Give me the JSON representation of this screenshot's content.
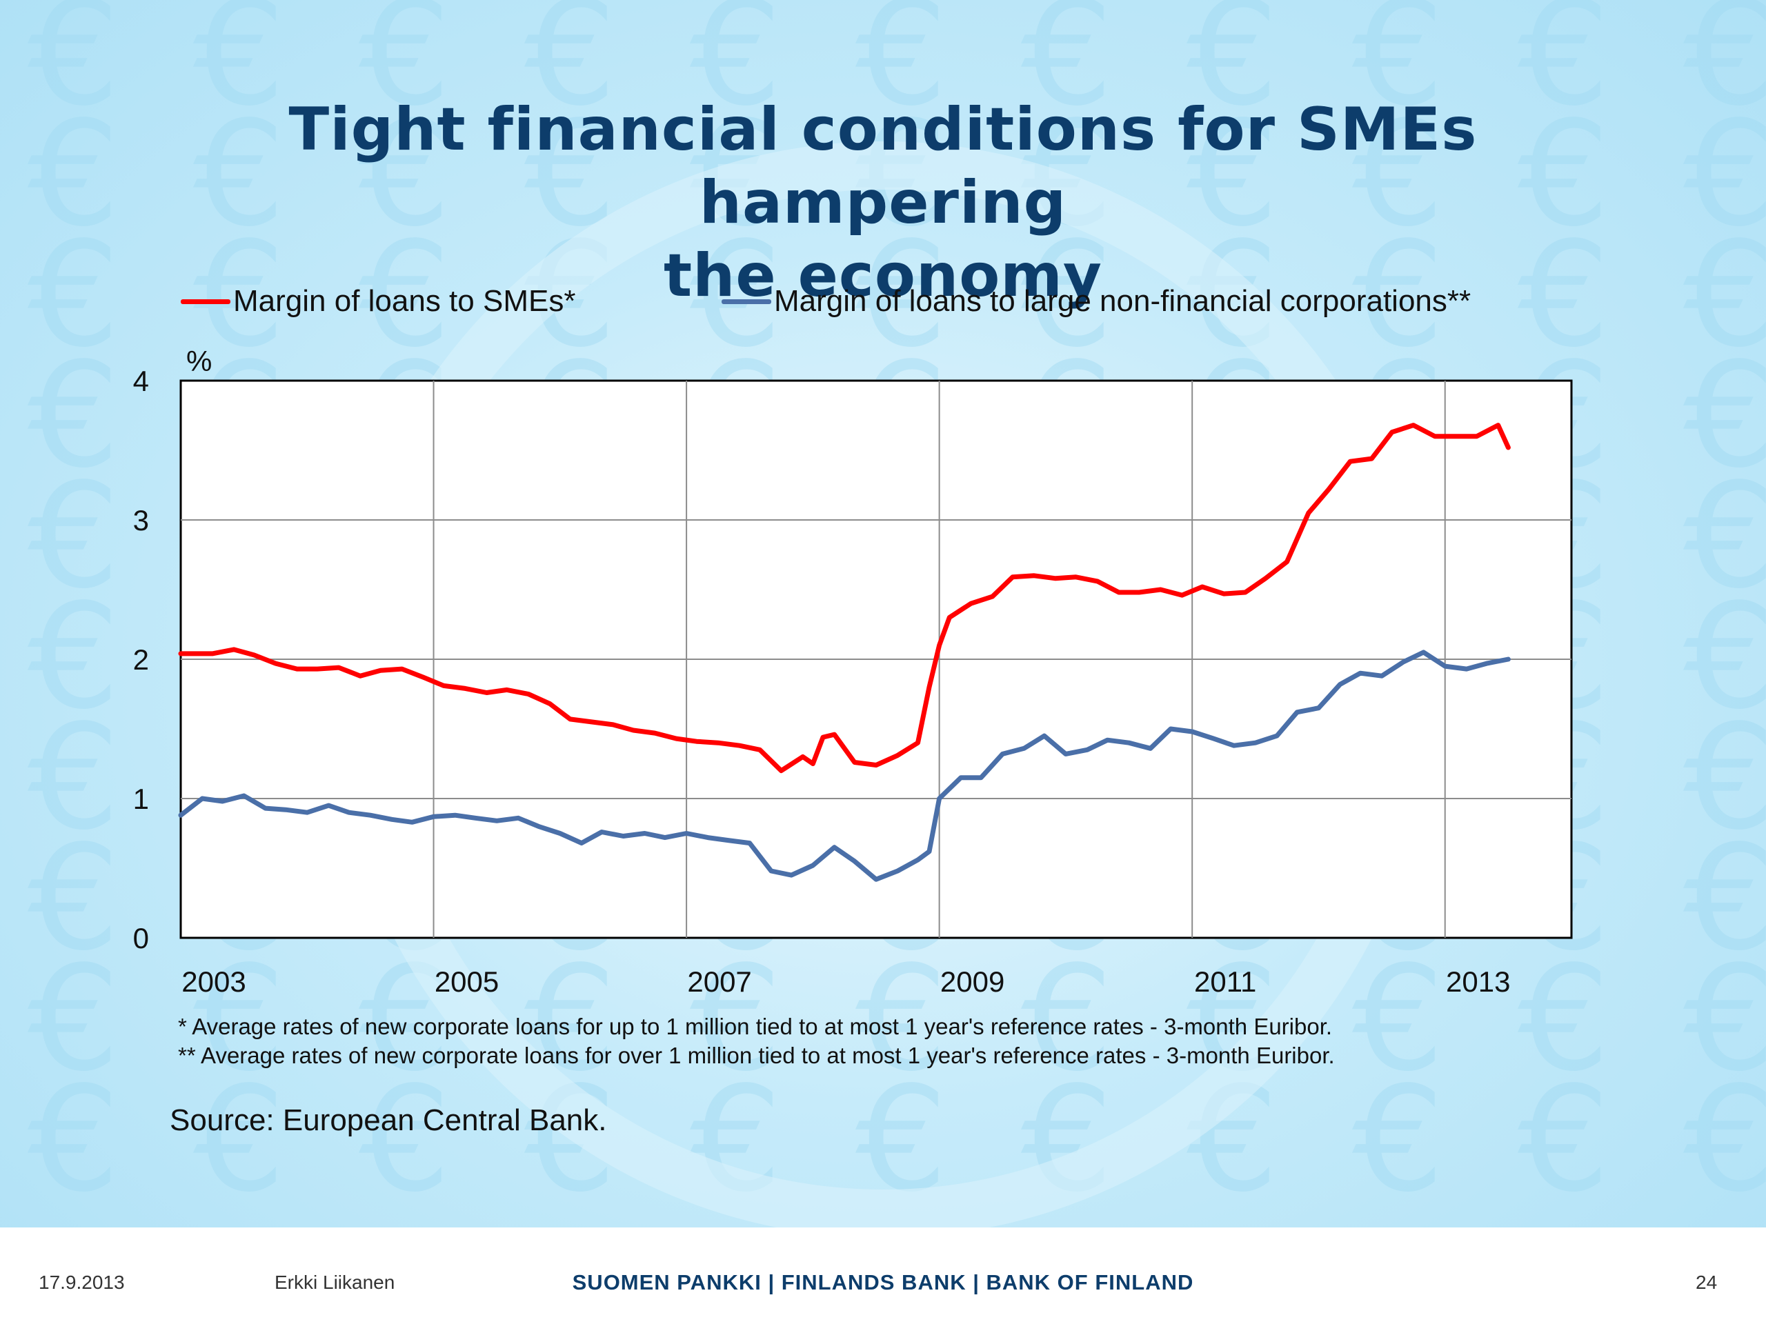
{
  "slide": {
    "title_line1": "Tight financial conditions for SMEs hampering",
    "title_line2": "the economy",
    "footnote1": "* Average rates of new corporate loans for up to 1 million tied to at most 1 year's reference rates  - 3-month Euribor.",
    "footnote2": "** Average rates of new corporate loans for over 1 million tied to at most 1 year's reference rates  - 3-month Euribor.",
    "source": "Source: European Central Bank.",
    "background_icon": "euro-sign-icon"
  },
  "footer": {
    "date": "17.9.2013",
    "author": "Erkki Liikanen",
    "organization": "SUOMEN PANKKI | FINLANDS BANK | BANK OF FINLAND",
    "page_number": "24"
  },
  "chart_data": {
    "type": "line",
    "title": "",
    "xlabel": "",
    "ylabel": "%",
    "xlim": [
      2003,
      2014
    ],
    "ylim": [
      0,
      4
    ],
    "x_ticks": [
      "2003",
      "2005",
      "2007",
      "2009",
      "2011",
      "2013"
    ],
    "y_ticks": [
      "0",
      "1",
      "2",
      "3",
      "4"
    ],
    "grid": true,
    "legend": "top",
    "series": [
      {
        "name": "Margin of loans to SMEs*",
        "color": "#ff0000",
        "points": [
          [
            2003.0,
            2.04
          ],
          [
            2003.25,
            2.04
          ],
          [
            2003.42,
            2.07
          ],
          [
            2003.58,
            2.03
          ],
          [
            2003.75,
            1.97
          ],
          [
            2003.92,
            1.93
          ],
          [
            2004.08,
            1.93
          ],
          [
            2004.25,
            1.94
          ],
          [
            2004.42,
            1.88
          ],
          [
            2004.58,
            1.92
          ],
          [
            2004.75,
            1.93
          ],
          [
            2004.92,
            1.87
          ],
          [
            2005.08,
            1.81
          ],
          [
            2005.25,
            1.79
          ],
          [
            2005.42,
            1.76
          ],
          [
            2005.58,
            1.78
          ],
          [
            2005.75,
            1.75
          ],
          [
            2005.92,
            1.68
          ],
          [
            2006.08,
            1.57
          ],
          [
            2006.25,
            1.55
          ],
          [
            2006.42,
            1.53
          ],
          [
            2006.58,
            1.49
          ],
          [
            2006.75,
            1.47
          ],
          [
            2006.92,
            1.43
          ],
          [
            2007.08,
            1.41
          ],
          [
            2007.25,
            1.4
          ],
          [
            2007.42,
            1.38
          ],
          [
            2007.58,
            1.35
          ],
          [
            2007.75,
            1.2
          ],
          [
            2007.92,
            1.3
          ],
          [
            2008.0,
            1.25
          ],
          [
            2008.08,
            1.44
          ],
          [
            2008.17,
            1.46
          ],
          [
            2008.33,
            1.26
          ],
          [
            2008.5,
            1.24
          ],
          [
            2008.67,
            1.31
          ],
          [
            2008.83,
            1.4
          ],
          [
            2008.92,
            1.8
          ],
          [
            2009.0,
            2.1
          ],
          [
            2009.08,
            2.3
          ],
          [
            2009.25,
            2.4
          ],
          [
            2009.42,
            2.45
          ],
          [
            2009.58,
            2.59
          ],
          [
            2009.75,
            2.6
          ],
          [
            2009.92,
            2.58
          ],
          [
            2010.08,
            2.59
          ],
          [
            2010.25,
            2.56
          ],
          [
            2010.42,
            2.48
          ],
          [
            2010.58,
            2.48
          ],
          [
            2010.75,
            2.5
          ],
          [
            2010.92,
            2.46
          ],
          [
            2011.08,
            2.52
          ],
          [
            2011.25,
            2.47
          ],
          [
            2011.42,
            2.48
          ],
          [
            2011.58,
            2.58
          ],
          [
            2011.75,
            2.7
          ],
          [
            2011.92,
            3.05
          ],
          [
            2012.08,
            3.22
          ],
          [
            2012.25,
            3.42
          ],
          [
            2012.42,
            3.44
          ],
          [
            2012.58,
            3.63
          ],
          [
            2012.75,
            3.68
          ],
          [
            2012.92,
            3.6
          ],
          [
            2013.08,
            3.6
          ],
          [
            2013.25,
            3.6
          ],
          [
            2013.42,
            3.68
          ],
          [
            2013.5,
            3.52
          ]
        ]
      },
      {
        "name": "Margin of loans to large non-financial corporations**",
        "color": "#4a6fa8",
        "points": [
          [
            2003.0,
            0.88
          ],
          [
            2003.17,
            1.0
          ],
          [
            2003.33,
            0.98
          ],
          [
            2003.5,
            1.02
          ],
          [
            2003.67,
            0.93
          ],
          [
            2003.83,
            0.92
          ],
          [
            2004.0,
            0.9
          ],
          [
            2004.17,
            0.95
          ],
          [
            2004.33,
            0.9
          ],
          [
            2004.5,
            0.88
          ],
          [
            2004.67,
            0.85
          ],
          [
            2004.83,
            0.83
          ],
          [
            2005.0,
            0.87
          ],
          [
            2005.17,
            0.88
          ],
          [
            2005.33,
            0.86
          ],
          [
            2005.5,
            0.84
          ],
          [
            2005.67,
            0.86
          ],
          [
            2005.83,
            0.8
          ],
          [
            2006.0,
            0.75
          ],
          [
            2006.17,
            0.68
          ],
          [
            2006.33,
            0.76
          ],
          [
            2006.5,
            0.73
          ],
          [
            2006.67,
            0.75
          ],
          [
            2006.83,
            0.72
          ],
          [
            2007.0,
            0.75
          ],
          [
            2007.17,
            0.72
          ],
          [
            2007.33,
            0.7
          ],
          [
            2007.5,
            0.68
          ],
          [
            2007.67,
            0.48
          ],
          [
            2007.83,
            0.45
          ],
          [
            2008.0,
            0.52
          ],
          [
            2008.17,
            0.65
          ],
          [
            2008.33,
            0.55
          ],
          [
            2008.5,
            0.42
          ],
          [
            2008.67,
            0.48
          ],
          [
            2008.83,
            0.56
          ],
          [
            2008.92,
            0.62
          ],
          [
            2009.0,
            1.0
          ],
          [
            2009.17,
            1.15
          ],
          [
            2009.33,
            1.15
          ],
          [
            2009.5,
            1.32
          ],
          [
            2009.67,
            1.36
          ],
          [
            2009.83,
            1.45
          ],
          [
            2010.0,
            1.32
          ],
          [
            2010.17,
            1.35
          ],
          [
            2010.33,
            1.42
          ],
          [
            2010.5,
            1.4
          ],
          [
            2010.67,
            1.36
          ],
          [
            2010.83,
            1.5
          ],
          [
            2011.0,
            1.48
          ],
          [
            2011.17,
            1.43
          ],
          [
            2011.33,
            1.38
          ],
          [
            2011.5,
            1.4
          ],
          [
            2011.67,
            1.45
          ],
          [
            2011.83,
            1.62
          ],
          [
            2012.0,
            1.65
          ],
          [
            2012.17,
            1.82
          ],
          [
            2012.33,
            1.9
          ],
          [
            2012.5,
            1.88
          ],
          [
            2012.67,
            1.98
          ],
          [
            2012.83,
            2.05
          ],
          [
            2013.0,
            1.95
          ],
          [
            2013.17,
            1.93
          ],
          [
            2013.33,
            1.97
          ],
          [
            2013.5,
            2.0
          ]
        ]
      }
    ]
  }
}
